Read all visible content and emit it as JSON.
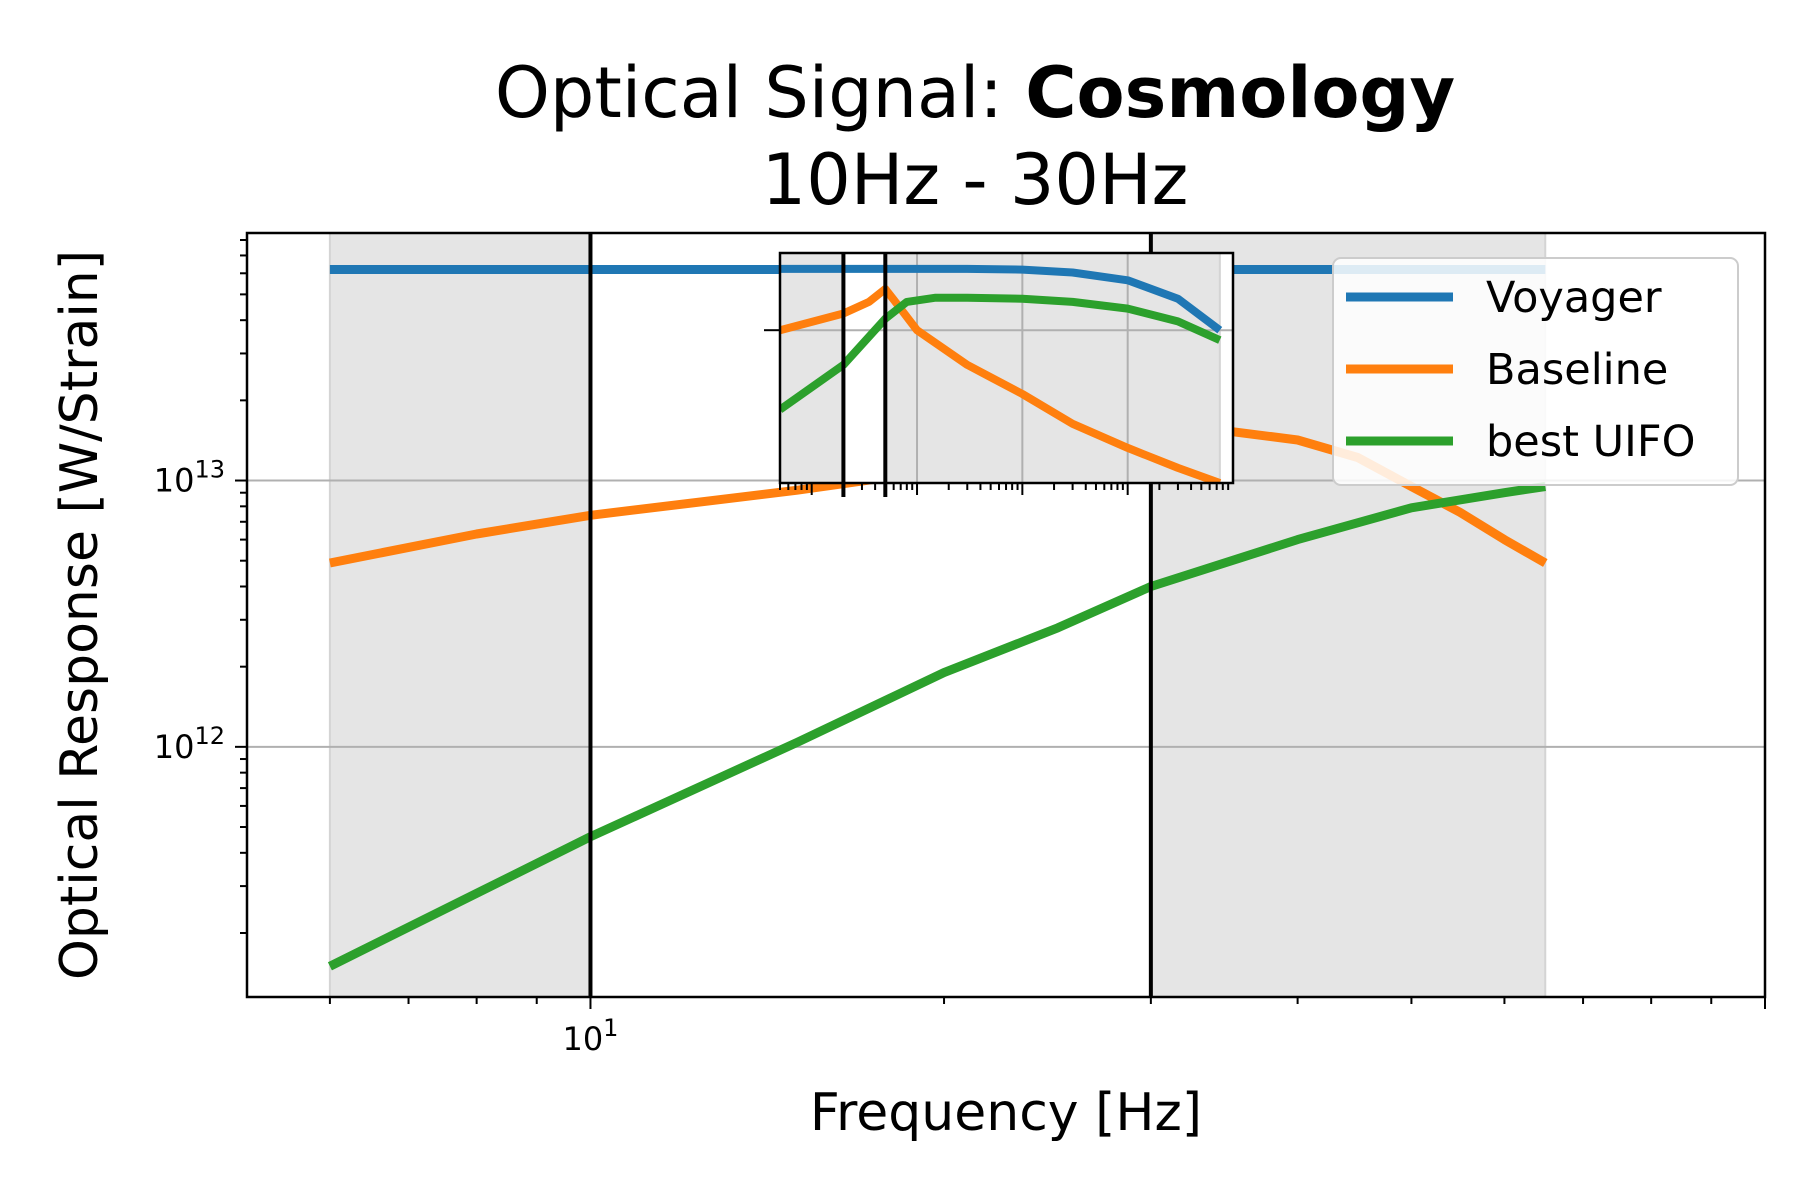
{
  "chart_data": {
    "type": "line",
    "title_regular": "Optical Signal: ",
    "title_bold": "Cosmology",
    "subtitle": "10Hz - 30Hz",
    "xlabel": "Frequency [Hz]",
    "ylabel": "Optical Response [W/Strain]",
    "x_scale": "log",
    "y_scale": "log",
    "xlim": [
      5.1,
      100
    ],
    "ylim": [
      115000000000.0,
      85000000000000.0
    ],
    "x_tick_labels": [
      {
        "value": 10,
        "base": "10",
        "exp": "1"
      }
    ],
    "y_tick_labels": [
      {
        "value": 1000000000000.0,
        "base": "10",
        "exp": "12"
      },
      {
        "value": 10000000000000.0,
        "base": "10",
        "exp": "13"
      }
    ],
    "grid": true,
    "legend_placement": "upper right",
    "shaded_bands": [
      [
        6,
        10
      ],
      [
        30,
        65
      ]
    ],
    "vertical_lines": [
      10,
      30
    ],
    "series": [
      {
        "name": "Voyager",
        "color": "#1f77b4",
        "x": [
          6,
          65
        ],
        "y": [
          62000000000000.0,
          62000000000000.0
        ]
      },
      {
        "name": "Baseline",
        "color": "#ff7f0e",
        "x": [
          6,
          8,
          10,
          15,
          20,
          25,
          30,
          35,
          40,
          45,
          50,
          55,
          60,
          65
        ],
        "y": [
          4900000000000.0,
          6300000000000.0,
          7400000000000.0,
          9200000000000.0,
          11000000000000.0,
          13200000000000.0,
          15000000000000.0,
          15300000000000.0,
          14200000000000.0,
          12200000000000.0,
          9500000000000.0,
          7600000000000.0,
          6000000000000.0,
          4900000000000.0
        ]
      },
      {
        "name": "best UIFO",
        "color": "#2ca02c",
        "x": [
          6,
          10,
          15,
          20,
          25,
          30,
          40,
          50,
          60,
          65
        ],
        "y": [
          150000000000.0,
          460000000000.0,
          1040000000000.0,
          1900000000000.0,
          2800000000000.0,
          4000000000000.0,
          6000000000000.0,
          7900000000000.0,
          9000000000000.0,
          9500000000000.0
        ]
      }
    ],
    "inset": {
      "x_scale": "log",
      "y_scale": "log",
      "xlim": [
        0.5,
        10000
      ],
      "ylim": [
        0.07,
        1.35
      ],
      "shaded_bands": [
        [
          0.5,
          2
        ],
        [
          5,
          7500
        ]
      ],
      "vertical_lines": [
        2,
        5
      ],
      "series": [
        {
          "name": "Voyager",
          "color": "#1f77b4",
          "x": [
            0.5,
            5,
            30,
            100,
            300,
            1000,
            3000,
            7500
          ],
          "y": [
            1.1,
            1.1,
            1.1,
            1.09,
            1.05,
            0.95,
            0.75,
            0.5
          ]
        },
        {
          "name": "Baseline",
          "color": "#ff7f0e",
          "x": [
            0.5,
            2,
            3.5,
            5,
            6,
            10,
            30,
            100,
            300,
            1000,
            3000,
            7500
          ],
          "y": [
            0.5,
            0.62,
            0.72,
            0.85,
            0.74,
            0.5,
            0.32,
            0.22,
            0.15,
            0.11,
            0.085,
            0.07
          ]
        },
        {
          "name": "best UIFO",
          "color": "#2ca02c",
          "x": [
            0.5,
            2,
            5,
            8,
            15,
            30,
            100,
            300,
            1000,
            3000,
            7500
          ],
          "y": [
            0.18,
            0.32,
            0.58,
            0.72,
            0.76,
            0.76,
            0.75,
            0.72,
            0.66,
            0.56,
            0.44
          ]
        }
      ]
    }
  }
}
